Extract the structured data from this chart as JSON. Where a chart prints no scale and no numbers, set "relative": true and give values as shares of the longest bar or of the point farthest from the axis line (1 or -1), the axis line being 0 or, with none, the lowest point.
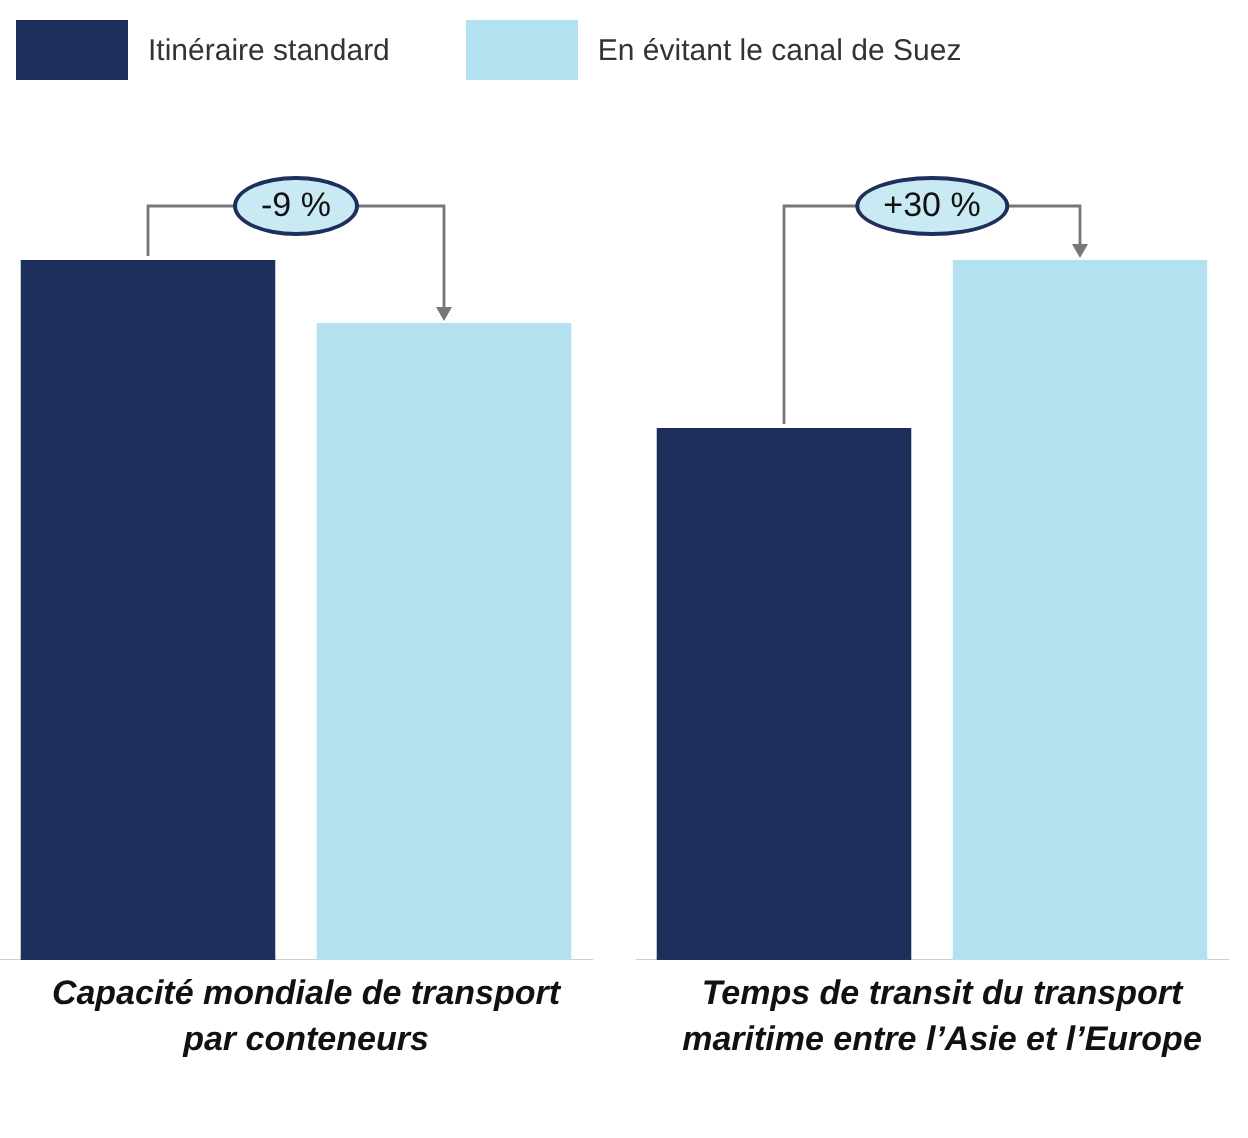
{
  "chart_data": [
    {
      "type": "bar",
      "categories": [
        null
      ],
      "relative": true,
      "legend": "top",
      "grid": false,
      "xlabel": "Capacité mondiale de transport par conteneurs",
      "annotations": [
        "-9 %"
      ],
      "series": [
        {
          "name": "Itinéraire standard",
          "color": "#1f2f5c",
          "values": [
            1
          ]
        },
        {
          "name": "En évitant le canal de Suez",
          "color": "#b3e1ef",
          "values": [
            0.91
          ]
        }
      ]
    },
    {
      "type": "bar",
      "categories": [
        null
      ],
      "relative": true,
      "grid": false,
      "xlabel": "Temps de transit du transport maritime entre l’Asie et l’Europe",
      "annotations": [
        "+30 %"
      ],
      "series": [
        {
          "color": "#1f2f5c",
          "values": [
            0.76
          ]
        },
        {
          "color": "#b3e1ef",
          "values": [
            1
          ]
        }
      ]
    }
  ]
}
